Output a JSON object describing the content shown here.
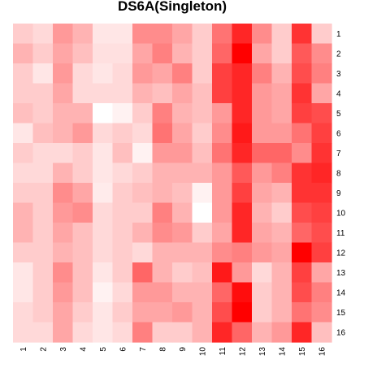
{
  "chart_data": {
    "type": "heatmap",
    "title": "DS6A(Singleton)",
    "x_labels": [
      "1",
      "2",
      "3",
      "4",
      "5",
      "6",
      "7",
      "8",
      "9",
      "10",
      "11",
      "12",
      "13",
      "14",
      "15",
      "16"
    ],
    "y_labels": [
      "1",
      "2",
      "3",
      "4",
      "5",
      "6",
      "7",
      "8",
      "9",
      "10",
      "11",
      "12",
      "13",
      "14",
      "15",
      "16"
    ],
    "color_scale": {
      "low": "#ffffff",
      "high": "#ff0000",
      "range": [
        0,
        1
      ]
    },
    "grid": false,
    "values": [
      [
        0.2,
        0.15,
        0.4,
        0.3,
        0.1,
        0.1,
        0.45,
        0.45,
        0.35,
        0.2,
        0.55,
        0.85,
        0.45,
        0.2,
        0.8,
        0.2
      ],
      [
        0.3,
        0.2,
        0.35,
        0.25,
        0.12,
        0.12,
        0.35,
        0.5,
        0.3,
        0.2,
        0.6,
        1.0,
        0.35,
        0.2,
        0.65,
        0.45
      ],
      [
        0.2,
        0.1,
        0.4,
        0.15,
        0.1,
        0.15,
        0.4,
        0.35,
        0.5,
        0.2,
        0.75,
        0.85,
        0.5,
        0.3,
        0.7,
        0.5
      ],
      [
        0.2,
        0.2,
        0.35,
        0.15,
        0.15,
        0.15,
        0.3,
        0.25,
        0.35,
        0.25,
        0.75,
        0.85,
        0.4,
        0.35,
        0.8,
        0.35
      ],
      [
        0.25,
        0.2,
        0.3,
        0.3,
        0.0,
        0.05,
        0.2,
        0.5,
        0.3,
        0.25,
        0.4,
        0.85,
        0.4,
        0.35,
        0.75,
        0.7
      ],
      [
        0.1,
        0.25,
        0.3,
        0.4,
        0.15,
        0.2,
        0.15,
        0.55,
        0.35,
        0.2,
        0.45,
        0.9,
        0.4,
        0.4,
        0.55,
        0.75
      ],
      [
        0.2,
        0.15,
        0.15,
        0.2,
        0.1,
        0.25,
        0.05,
        0.4,
        0.4,
        0.25,
        0.55,
        0.85,
        0.6,
        0.6,
        0.45,
        0.8
      ],
      [
        0.15,
        0.15,
        0.3,
        0.2,
        0.1,
        0.15,
        0.2,
        0.3,
        0.3,
        0.3,
        0.4,
        0.65,
        0.4,
        0.5,
        0.8,
        0.85
      ],
      [
        0.2,
        0.2,
        0.45,
        0.35,
        0.08,
        0.2,
        0.25,
        0.3,
        0.25,
        0.05,
        0.4,
        0.75,
        0.35,
        0.3,
        0.8,
        0.8
      ],
      [
        0.3,
        0.2,
        0.4,
        0.45,
        0.15,
        0.2,
        0.2,
        0.5,
        0.3,
        0.0,
        0.4,
        0.85,
        0.3,
        0.2,
        0.7,
        0.75
      ],
      [
        0.3,
        0.2,
        0.35,
        0.25,
        0.15,
        0.2,
        0.3,
        0.45,
        0.4,
        0.2,
        0.35,
        0.85,
        0.35,
        0.3,
        0.6,
        0.7
      ],
      [
        0.2,
        0.2,
        0.3,
        0.25,
        0.15,
        0.2,
        0.15,
        0.3,
        0.3,
        0.3,
        0.45,
        0.5,
        0.4,
        0.35,
        1.0,
        0.75
      ],
      [
        0.1,
        0.2,
        0.45,
        0.25,
        0.1,
        0.2,
        0.6,
        0.3,
        0.2,
        0.25,
        0.9,
        0.4,
        0.15,
        0.3,
        0.75,
        0.35
      ],
      [
        0.1,
        0.2,
        0.4,
        0.25,
        0.05,
        0.15,
        0.4,
        0.4,
        0.3,
        0.3,
        0.6,
        0.95,
        0.2,
        0.3,
        0.7,
        0.5
      ],
      [
        0.15,
        0.2,
        0.35,
        0.2,
        0.1,
        0.2,
        0.35,
        0.35,
        0.4,
        0.3,
        0.7,
        1.0,
        0.2,
        0.3,
        0.55,
        0.45
      ],
      [
        0.15,
        0.15,
        0.35,
        0.15,
        0.1,
        0.15,
        0.5,
        0.2,
        0.2,
        0.3,
        0.85,
        0.6,
        0.3,
        0.4,
        0.85,
        0.25
      ]
    ]
  }
}
